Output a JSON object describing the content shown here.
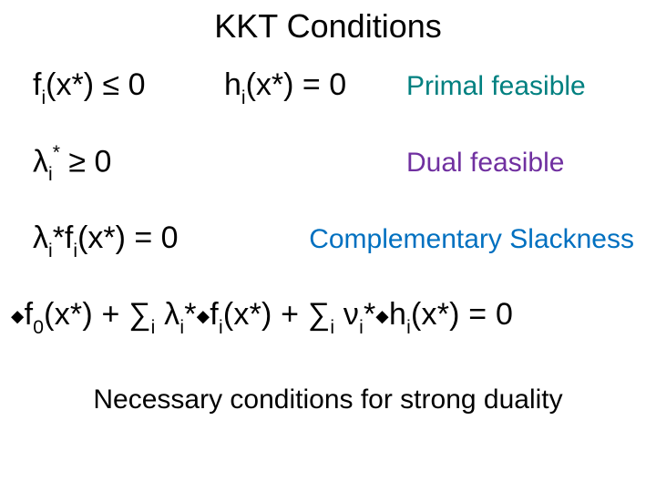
{
  "title": "KKT Conditions",
  "row1": {
    "expr_f": {
      "prefix": "f",
      "sub": "i",
      "body": "(x*) ≤ 0"
    },
    "expr_h": {
      "prefix": "h",
      "sub": "i",
      "body": "(x*) = 0"
    },
    "label": "Primal feasible"
  },
  "row2": {
    "expr": {
      "prefix": "λ",
      "sub": "i",
      "sup": "*",
      "body": " ≥ 0"
    },
    "label": "Dual feasible"
  },
  "row3": {
    "expr": {
      "prefix": "λ",
      "sub": "i",
      "mid": "*f",
      "sub2": "i",
      "body": "(x*) = 0"
    },
    "label": "Complementary Slackness"
  },
  "stationarity": {
    "t1": "f",
    "s1": "0",
    "t2": "(x*) + ∑",
    "s2": "i",
    "t3": " λ",
    "s3": "i",
    "t4": "*",
    "t5": "f",
    "s5": "i",
    "t6": "(x*) + ∑",
    "s6": "i",
    "t7": " ν",
    "s7": "i",
    "t8": "*",
    "t9": "h",
    "s9": "i",
    "t10": "(x*) = 0"
  },
  "footer": "Necessary conditions for strong duality",
  "colors": {
    "teal": "#008080",
    "purple": "#7030a0",
    "blue": "#0070c0",
    "text": "#000000",
    "background": "#ffffff"
  }
}
